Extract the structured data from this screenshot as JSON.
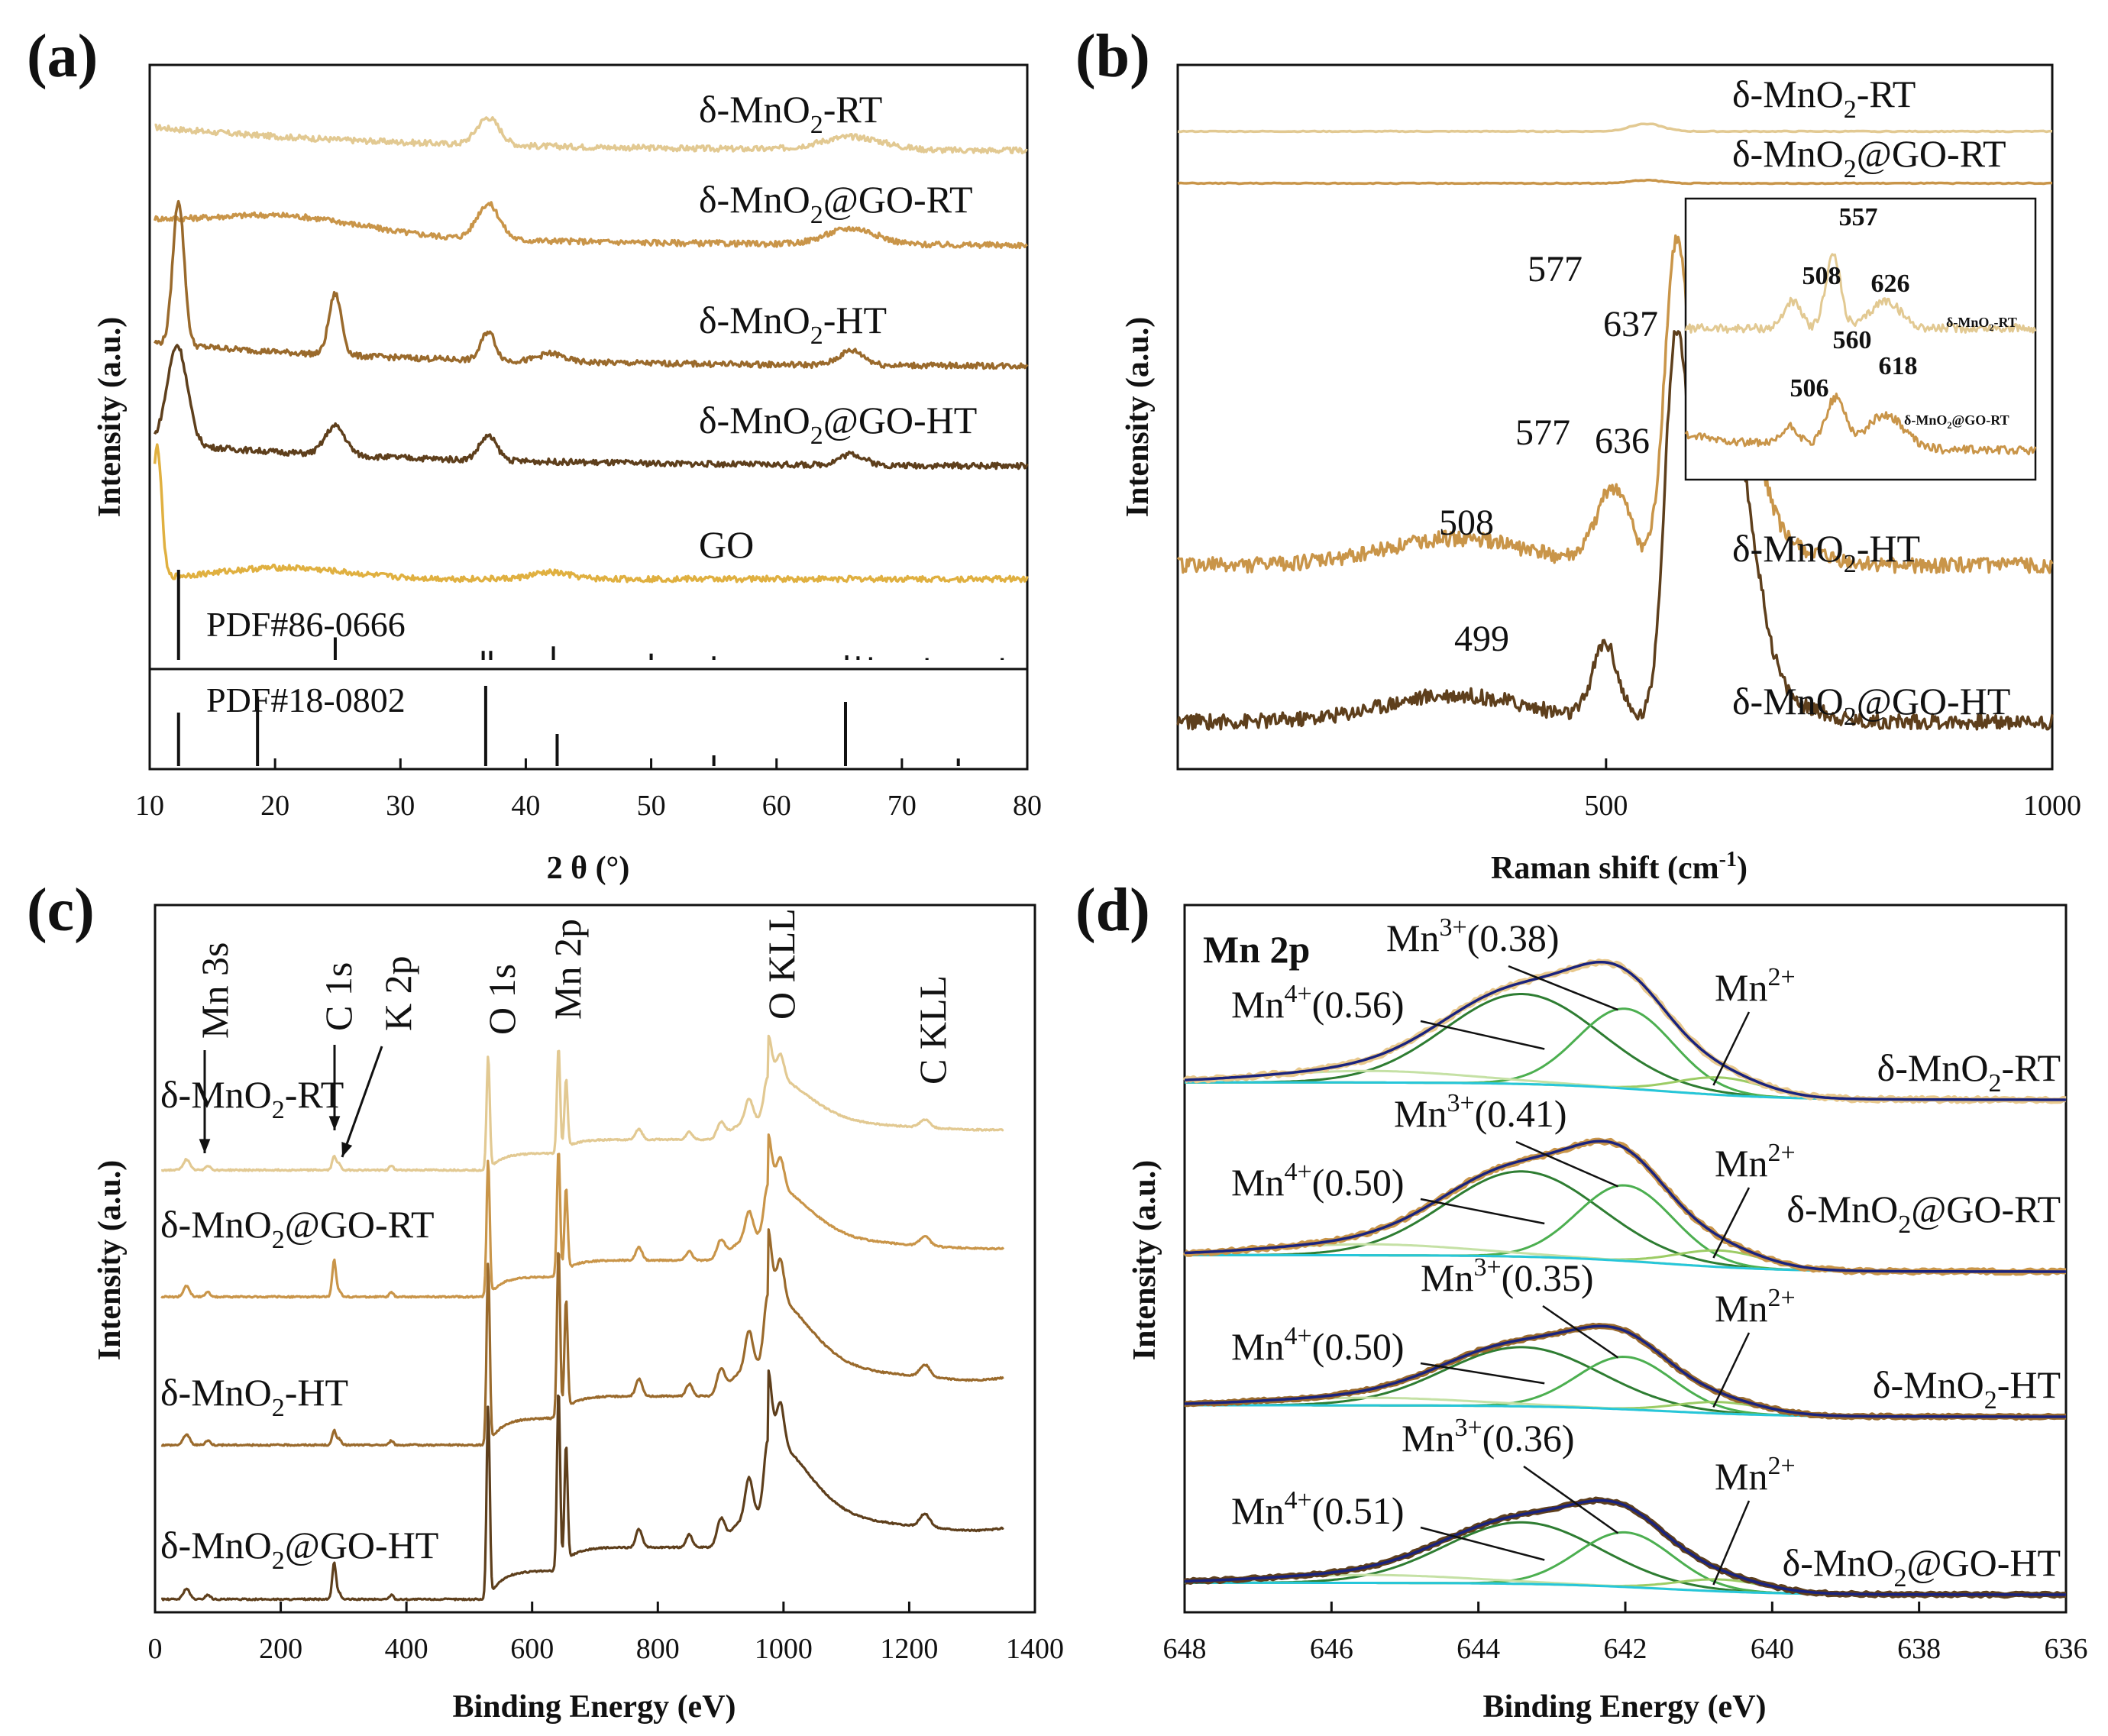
{
  "chart_data": [
    {
      "id": "a",
      "type": "line",
      "panel_label": "(a)",
      "title": "",
      "xlabel": "2 θ (°)",
      "ylabel": "Intensity (a.u.)",
      "xlim": [
        10,
        80
      ],
      "x_ticks": [
        "10",
        "20",
        "30",
        "40",
        "50",
        "60",
        "70",
        "80"
      ],
      "grid": false,
      "series": [
        {
          "name": "δ-MnO2-RT",
          "label_main": "δ-MnO",
          "label_sub": "2",
          "label_tail": "-RT",
          "color": "#e2c992",
          "peaks": [
            [
              37,
              0.85,
              0.9
            ],
            [
              66,
              0.4,
              2.5
            ]
          ]
        },
        {
          "name": "δ-MnO2@GO-RT",
          "label_main": "δ-MnO",
          "label_sub": "2",
          "label_tail": "@GO-RT",
          "color": "#c99549",
          "peaks": [
            [
              21,
              0.5,
              6
            ],
            [
              37,
              1.1,
              0.9
            ],
            [
              66,
              0.5,
              2
            ]
          ]
        },
        {
          "name": "δ-MnO2-HT",
          "label_main": "δ-MnO",
          "label_sub": "2",
          "label_tail": "-HT",
          "color": "#9a6a2c",
          "peaks": [
            [
              12.3,
              4.5,
              0.45
            ],
            [
              24.8,
              1.9,
              0.5
            ],
            [
              37,
              0.9,
              0.55
            ],
            [
              42,
              0.25,
              1
            ],
            [
              66,
              0.45,
              1
            ]
          ]
        },
        {
          "name": "δ-MnO2@GO-HT",
          "label_main": "δ-MnO",
          "label_sub": "2",
          "label_tail": "@GO-HT",
          "color": "#5e3f1c",
          "peaks": [
            [
              12.2,
              3.1,
              0.8
            ],
            [
              24.8,
              0.9,
              0.8
            ],
            [
              37,
              0.75,
              0.7
            ],
            [
              66,
              0.35,
              1
            ]
          ]
        },
        {
          "name": "GO",
          "label_main": "GO",
          "label_sub": "",
          "label_tail": "",
          "color": "#e0b040",
          "peaks": [
            [
              10.6,
              4.1,
              0.35
            ],
            [
              20.5,
              0.35,
              5
            ],
            [
              42,
              0.2,
              1.5
            ]
          ]
        }
      ],
      "reference_patterns": [
        {
          "name": "PDF#86-0666",
          "lines": [
            [
              12.3,
              1.0
            ],
            [
              24.8,
              0.25
            ],
            [
              36.6,
              0.1
            ],
            [
              37.2,
              0.1
            ],
            [
              42.2,
              0.15
            ],
            [
              50,
              0.07
            ],
            [
              55,
              0.04
            ],
            [
              65.6,
              0.05
            ],
            [
              66.5,
              0.04
            ],
            [
              67.5,
              0.03
            ],
            [
              72,
              0.02
            ],
            [
              78,
              0.02
            ]
          ]
        },
        {
          "name": "PDF#18-0802",
          "lines": [
            [
              12.3,
              0.5
            ],
            [
              18.6,
              0.65
            ],
            [
              36.8,
              0.75
            ],
            [
              42.5,
              0.3
            ],
            [
              55,
              0.1
            ],
            [
              65.5,
              0.6
            ],
            [
              74.5,
              0.07
            ]
          ]
        }
      ]
    },
    {
      "id": "b",
      "type": "line",
      "panel_label": "(b)",
      "title": "",
      "xlabel": "Raman shift (cm-1)",
      "xlabel_main": "Raman shift (cm",
      "xlabel_sup": "-1",
      "xlabel_tail": ")",
      "ylabel": "Intensity (a.u.)",
      "xlim": [
        0,
        1000
      ],
      "x_ticks": [
        "500",
        "1000"
      ],
      "grid": false,
      "series": [
        {
          "name": "δ-MnO2-RT",
          "label_main": "δ-MnO",
          "label_sub": "2",
          "label_tail": "-RT",
          "color": "#e2c992"
        },
        {
          "name": "δ-MnO2@GO-RT",
          "label_main": "δ-MnO",
          "label_sub": "2",
          "label_tail": "@GO-RT",
          "color": "#c99549"
        },
        {
          "name": "δ-MnO2-HT",
          "label_main": "δ-MnO",
          "label_sub": "2",
          "label_tail": "-HT",
          "color": "#c99549",
          "peaks": [
            [
              508,
              1.0,
              18
            ],
            [
              577,
              3.4,
              12
            ],
            [
              637,
              2.8,
              30
            ],
            [
              610,
              1.0,
              25
            ]
          ]
        },
        {
          "name": "δ-MnO2@GO-HT",
          "label_main": "δ-MnO",
          "label_sub": "2",
          "label_tail": "@GO-HT",
          "color": "#5e3f1c",
          "peaks": [
            [
              499,
              1.0,
              14
            ],
            [
              577,
              4.0,
              12
            ],
            [
              636,
              3.7,
              30
            ],
            [
              610,
              1.3,
              25
            ]
          ]
        }
      ],
      "peak_labels": [
        "577",
        "637",
        "508",
        "577",
        "636",
        "499"
      ],
      "inset": {
        "series": [
          {
            "name": "δ-MnO2-RT",
            "label_main": "δ-MnO",
            "label_sub": "2",
            "label_tail": "-RT",
            "color": "#e2c992"
          },
          {
            "name": "δ-MnO2@GO-RT",
            "label_main": "δ-MnO",
            "label_sub": "2",
            "label_tail": "@GO-RT",
            "color": "#c99549"
          }
        ],
        "peak_labels": [
          "557",
          "508",
          "626",
          "560",
          "618",
          "506"
        ]
      }
    },
    {
      "id": "c",
      "type": "line",
      "panel_label": "(c)",
      "title": "",
      "xlabel": "Binding Energy (eV)",
      "ylabel": "Intensity (a.u.)",
      "xlim": [
        0,
        1400
      ],
      "x_ticks": [
        "0",
        "200",
        "400",
        "600",
        "800",
        "1000",
        "1200",
        "1400"
      ],
      "grid": false,
      "annotations": [
        "Mn 3s",
        "C 1s",
        "K 2p",
        "O 1s",
        "Mn 2p",
        "O KLL",
        "C KLL"
      ],
      "series": [
        {
          "name": "δ-MnO2-RT",
          "label_main": "δ-MnO",
          "label_sub": "2",
          "label_tail": "-RT",
          "color": "#e2c992",
          "peak_scale": 1.0
        },
        {
          "name": "δ-MnO2@GO-RT",
          "label_main": "δ-MnO",
          "label_sub": "2",
          "label_tail": "@GO-RT",
          "color": "#c99549",
          "peak_scale": 1.2
        },
        {
          "name": "δ-MnO2-HT",
          "label_main": "δ-MnO",
          "label_sub": "2",
          "label_tail": "-HT",
          "color": "#9a6a2c",
          "peak_scale": 1.6
        },
        {
          "name": "δ-MnO2@GO-HT",
          "label_main": "δ-MnO",
          "label_sub": "2",
          "label_tail": "@GO-HT",
          "color": "#5e3f1c",
          "peak_scale": 1.7
        }
      ]
    },
    {
      "id": "d",
      "type": "line",
      "panel_label": "(d)",
      "title": "Mn 2p",
      "xlabel": "Binding Energy (eV)",
      "ylabel": "Intensity (a.u.)",
      "xlim": [
        648,
        636
      ],
      "x_ticks": [
        "648",
        "646",
        "644",
        "642",
        "640",
        "638",
        "636"
      ],
      "grid": false,
      "series": [
        {
          "name": "δ-MnO2-RT",
          "label_main": "δ-MnO",
          "label_sub": "2",
          "label_tail": "-RT",
          "color": "#e8c88c",
          "mn3": "0.38",
          "mn4": "0.56"
        },
        {
          "name": "δ-MnO2@GO-RT",
          "label_main": "δ-MnO",
          "label_sub": "2",
          "label_tail": "@GO-RT",
          "color": "#c99549",
          "mn3": "0.41",
          "mn4": "0.50"
        },
        {
          "name": "δ-MnO2-HT",
          "label_main": "δ-MnO",
          "label_sub": "2",
          "label_tail": "-HT",
          "color": "#9a6a2c",
          "mn3": "0.35",
          "mn4": "0.50"
        },
        {
          "name": "δ-MnO2@GO-HT",
          "label_main": "δ-MnO",
          "label_sub": "2",
          "label_tail": "@GO-HT",
          "color": "#5e3f1c",
          "mn3": "0.36",
          "mn4": "0.51"
        }
      ],
      "component_labels": {
        "mn4_prefix": "Mn",
        "mn4_sup": "4+",
        "mn3_prefix": "Mn",
        "mn3_sup": "3+",
        "mn2_prefix": "Mn",
        "mn2_sup": "2+"
      }
    }
  ]
}
